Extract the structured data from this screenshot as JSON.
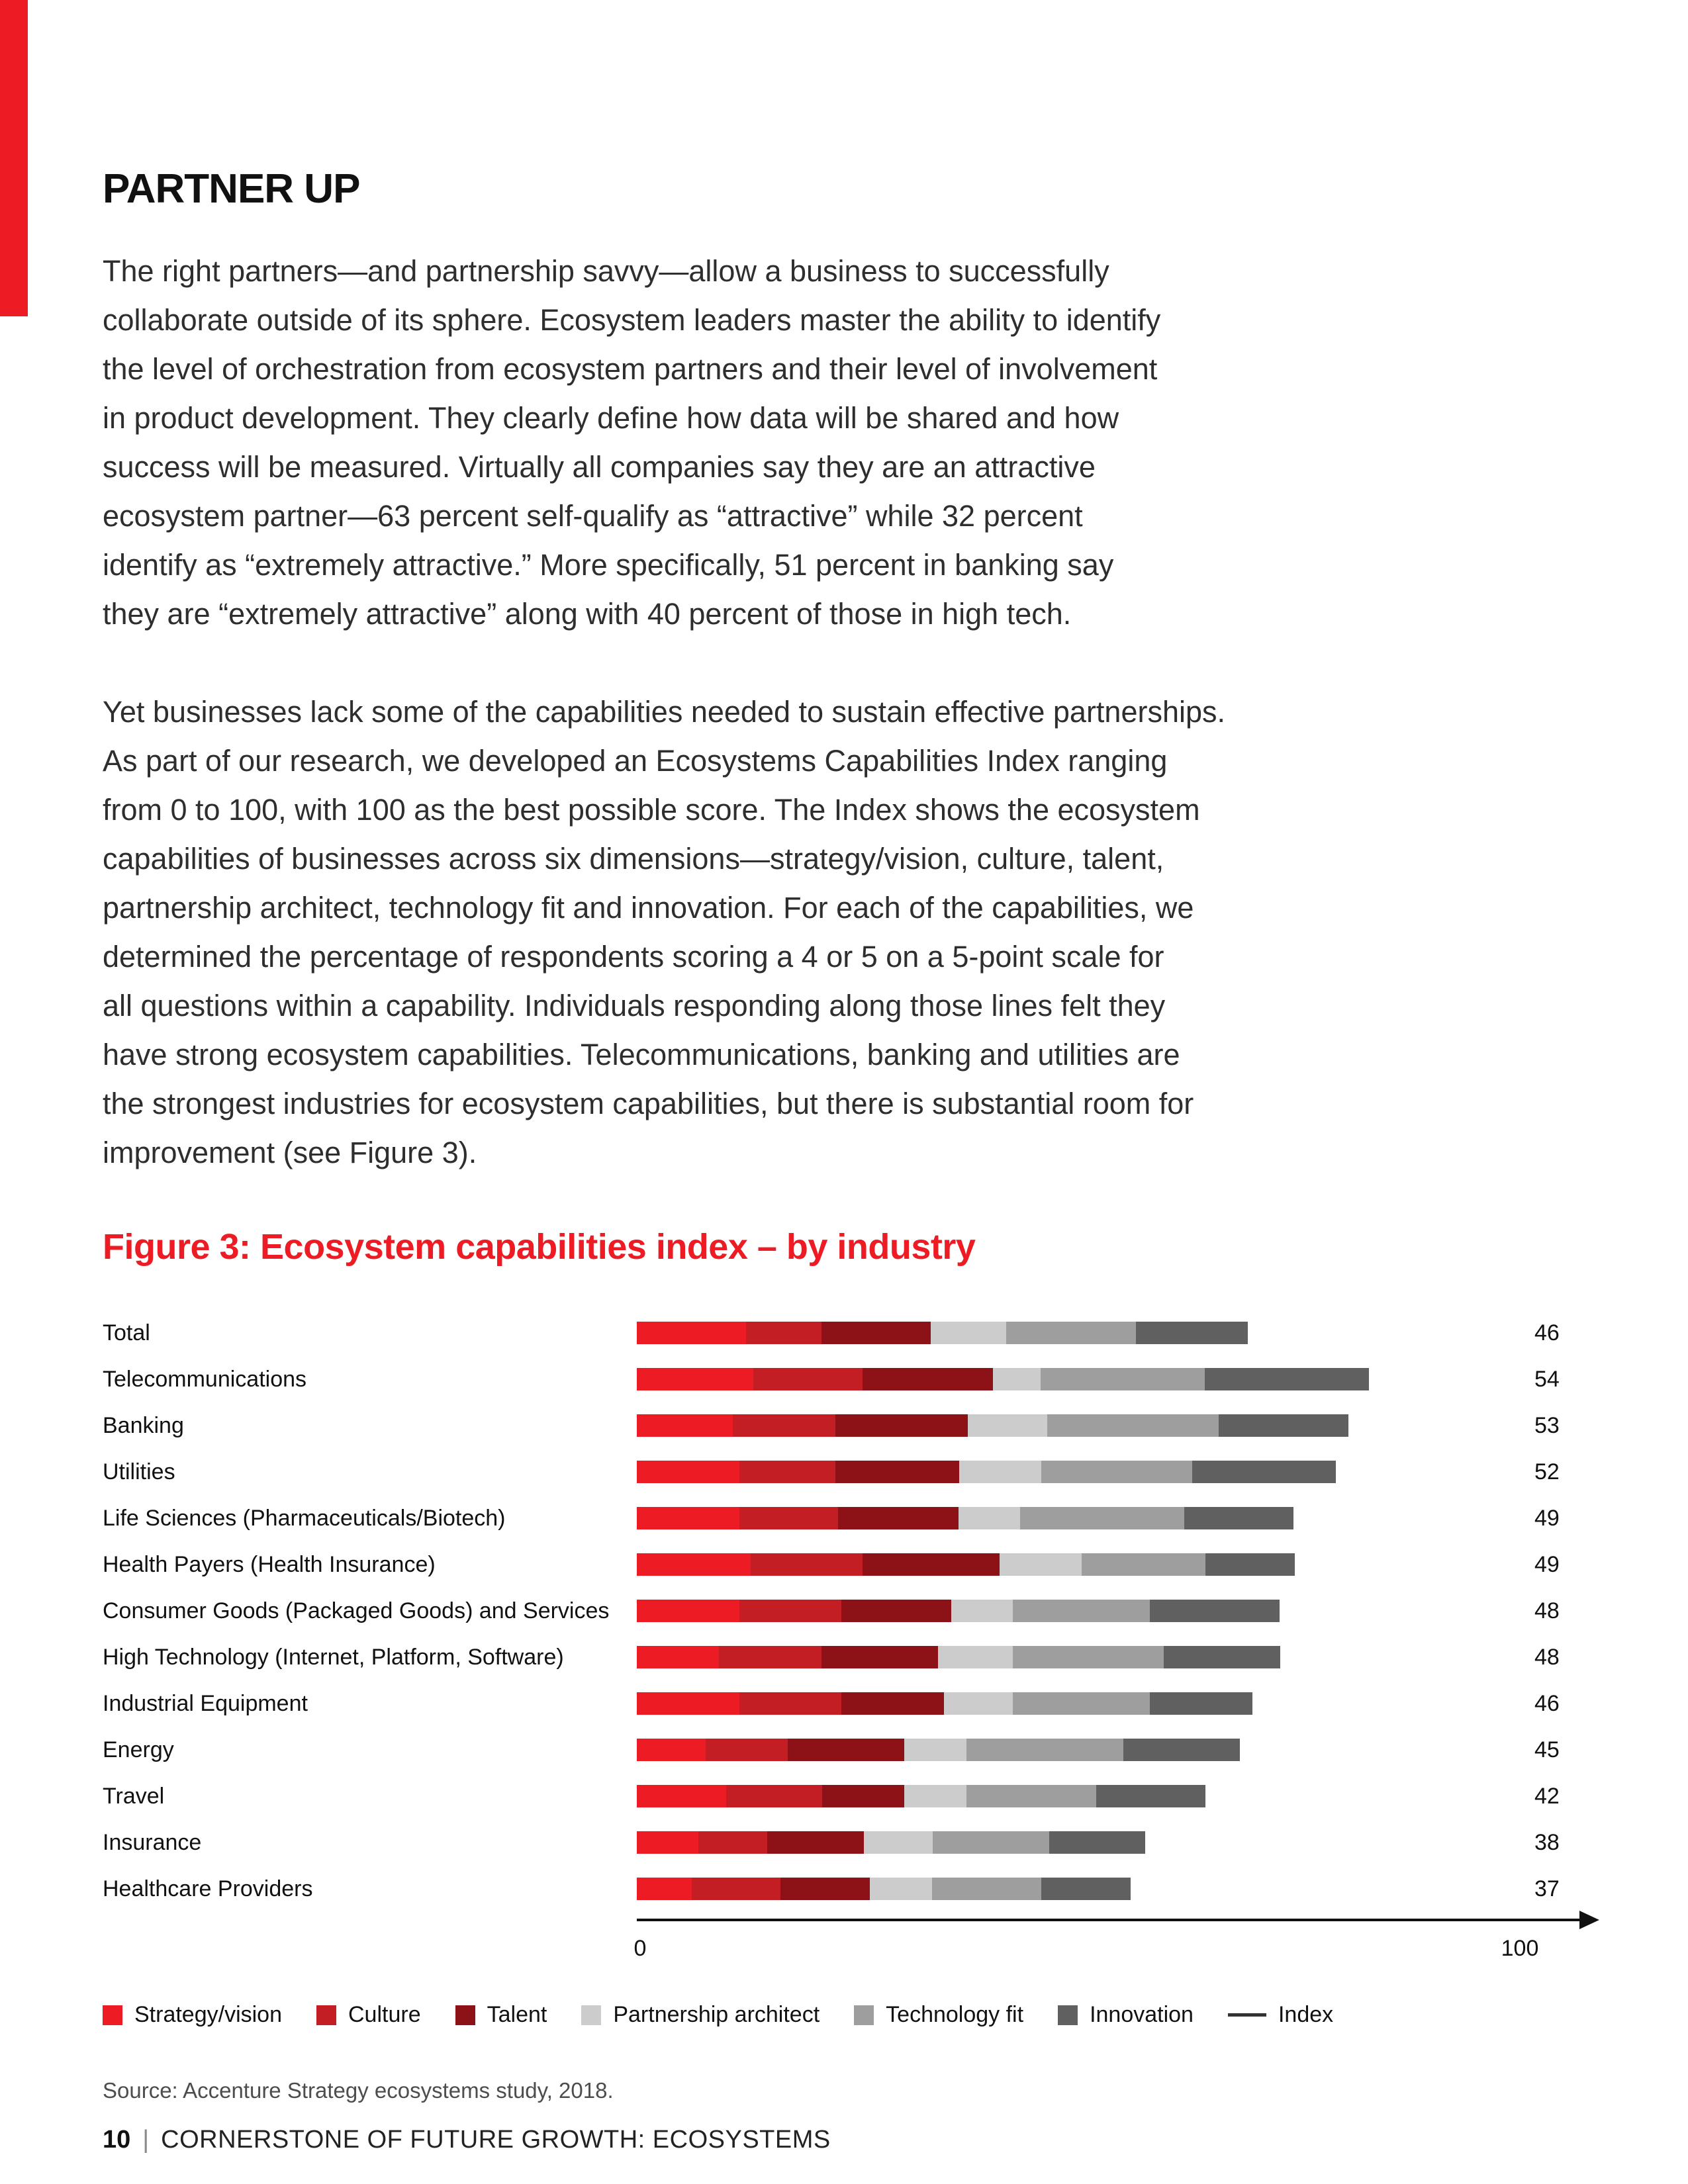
{
  "page": {
    "accent_color": "#ED1C24",
    "heading": "PARTNER UP",
    "paragraph_1": "The right partners—and partnership savvy—allow a business to successfully\ncollaborate outside of its sphere. Ecosystem leaders master the ability to identify\nthe level of orchestration from ecosystem partners and their level of involvement\nin product development. They clearly define how data will be shared and how\nsuccess will be measured. Virtually all companies say they are an attractive\necosystem partner—63 percent self-qualify as “attractive” while 32 percent\nidentify as “extremely attractive.” More specifically, 51 percent in banking say\nthey are “extremely attractive” along with 40 percent of those in high tech.",
    "paragraph_2": "Yet businesses lack some of the capabilities needed to sustain effective partnerships.\nAs part of our research, we developed an Ecosystems Capabilities Index ranging\nfrom 0 to 100, with 100 as the best possible score. The Index shows the ecosystem\ncapabilities of businesses across six dimensions—strategy/vision, culture, talent,\npartnership architect, technology fit and innovation. For each of the capabilities, we\ndetermined the percentage of respondents scoring a 4 or 5 on a 5-point scale for\nall questions within a capability. Individuals responding along those lines felt they\nhave strong ecosystem capabilities. Telecommunications, banking and utilities are\nthe strongest industries for ecosystem capabilities, but there is substantial room for\nimprovement (see Figure 3).",
    "figure_title": "Figure 3: Ecosystem capabilities index – by industry",
    "source": "Source: Accenture Strategy ecosystems study, 2018.",
    "footer": {
      "page_number": "10",
      "separator": "|",
      "title": "CORNERSTONE OF FUTURE GROWTH: ECOSYSTEMS"
    }
  },
  "chart_data": {
    "type": "bar",
    "orientation": "horizontal",
    "stacked": true,
    "title": "Figure 3: Ecosystem capabilities index – by industry",
    "categories": [
      "Total",
      "Telecommunications",
      "Banking",
      "Utilities",
      "Life Sciences (Pharmaceuticals/Biotech)",
      "Health Payers (Health Insurance)",
      "Consumer Goods (Packaged Goods) and Services",
      "High Technology (Internet, Platform, Software)",
      "Industrial Equipment",
      "Energy",
      "Travel",
      "Insurance",
      "Healthcare Providers"
    ],
    "index_values": [
      46,
      54,
      53,
      52,
      49,
      49,
      48,
      48,
      46,
      45,
      42,
      38,
      37
    ],
    "series": [
      {
        "name": "Strategy/vision",
        "color": "#ED1C24",
        "values": [
          12.4,
          13.2,
          10.9,
          11.6,
          11.6,
          12.9,
          11.6,
          9.3,
          11.6,
          7.8,
          10.1,
          7.0,
          6.2
        ]
      },
      {
        "name": "Culture",
        "color": "#C31E24",
        "values": [
          8.5,
          12.4,
          11.6,
          10.9,
          11.2,
          12.7,
          11.6,
          11.6,
          11.6,
          9.3,
          10.9,
          7.8,
          10.1
        ]
      },
      {
        "name": "Talent",
        "color": "#8C1218",
        "values": [
          12.4,
          14.7,
          15.0,
          14.0,
          13.6,
          15.5,
          12.4,
          13.2,
          11.6,
          13.2,
          9.3,
          10.9,
          10.1
        ]
      },
      {
        "name": "Partnership architect",
        "color": "#CCCCCC",
        "values": [
          8.5,
          5.4,
          9.0,
          9.3,
          7.0,
          9.3,
          7.0,
          8.5,
          7.8,
          7.0,
          7.0,
          7.8,
          7.0
        ]
      },
      {
        "name": "Technology fit",
        "color": "#9E9E9E",
        "values": [
          14.7,
          18.6,
          19.4,
          17.1,
          18.6,
          14.0,
          15.5,
          17.1,
          15.5,
          17.8,
          14.7,
          13.2,
          12.4
        ]
      },
      {
        "name": "Innovation",
        "color": "#606060",
        "values": [
          12.7,
          18.6,
          14.7,
          16.3,
          12.4,
          10.1,
          14.7,
          13.2,
          11.6,
          13.2,
          12.4,
          10.9,
          10.1
        ]
      }
    ],
    "axis": {
      "min_label": "0",
      "max_label": "100",
      "xlim": [
        0,
        100
      ],
      "grid": false
    },
    "legend_position": "bottom",
    "legend": [
      {
        "label": "Strategy/vision",
        "color": "#ED1C24",
        "marker": "square"
      },
      {
        "label": "Culture",
        "color": "#C31E24",
        "marker": "square"
      },
      {
        "label": "Talent",
        "color": "#8C1218",
        "marker": "square"
      },
      {
        "label": "Partnership architect",
        "color": "#CCCCCC",
        "marker": "square"
      },
      {
        "label": "Technology fit",
        "color": "#9E9E9E",
        "marker": "square"
      },
      {
        "label": "Innovation",
        "color": "#606060",
        "marker": "square"
      },
      {
        "label": "Index",
        "color": "#333333",
        "marker": "line"
      }
    ]
  }
}
